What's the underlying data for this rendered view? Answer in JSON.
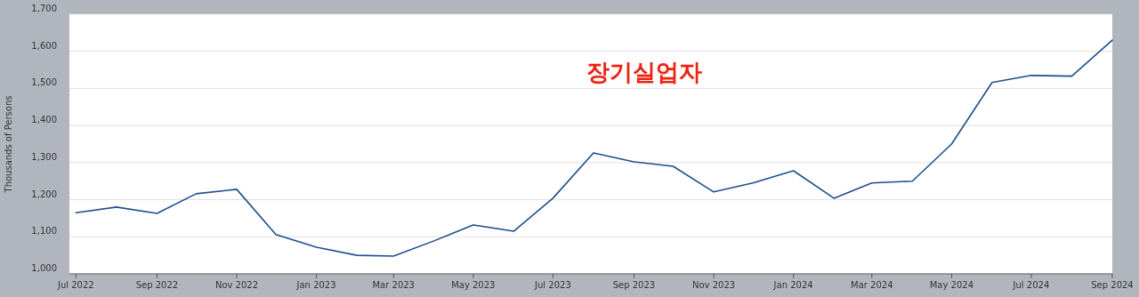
{
  "chart_data": {
    "type": "line",
    "ylabel": "Thousands of Persons",
    "annotations": [
      "장기실업자"
    ],
    "x": [
      "2022-07",
      "2022-08",
      "2022-09",
      "2022-10",
      "2022-11",
      "2022-12",
      "2023-01",
      "2023-02",
      "2023-03",
      "2023-04",
      "2023-05",
      "2023-06",
      "2023-07",
      "2023-08",
      "2023-09",
      "2023-10",
      "2023-11",
      "2023-12",
      "2024-01",
      "2024-02",
      "2024-03",
      "2024-04",
      "2024-05",
      "2024-06",
      "2024-07",
      "2024-08",
      "2024-09"
    ],
    "series": [
      {
        "color": "#1f4e8c",
        "values": [
          1165,
          1180,
          1163,
          1216,
          1228,
          1106,
          1072,
          1050,
          1048,
          1089,
          1132,
          1115,
          1204,
          1326,
          1302,
          1290,
          1221,
          1245,
          1278,
          1204,
          1245,
          1250,
          1350,
          1516,
          1535,
          1533,
          1630
        ]
      }
    ],
    "xlim": [
      "2022-06-26",
      "2024-09-01"
    ],
    "xticks": [
      {
        "value": "2022-07",
        "label": "Jul 2022"
      },
      {
        "value": "2022-09",
        "label": "Sep 2022"
      },
      {
        "value": "2022-11",
        "label": "Nov 2022"
      },
      {
        "value": "2023-01",
        "label": "Jan 2023"
      },
      {
        "value": "2023-03",
        "label": "Mar 2023"
      },
      {
        "value": "2023-05",
        "label": "May 2023"
      },
      {
        "value": "2023-07",
        "label": "Jul 2023"
      },
      {
        "value": "2023-09",
        "label": "Sep 2023"
      },
      {
        "value": "2023-11",
        "label": "Nov 2023"
      },
      {
        "value": "2024-01",
        "label": "Jan 2024"
      },
      {
        "value": "2024-03",
        "label": "Mar 2024"
      },
      {
        "value": "2024-05",
        "label": "May 2024"
      },
      {
        "value": "2024-07",
        "label": "Jul 2024"
      },
      {
        "value": "2024-09",
        "label": "Sep 2024"
      }
    ],
    "ylim": [
      1000,
      1700
    ],
    "yticks": [
      {
        "value": 1000,
        "label": "1,000"
      },
      {
        "value": 1100,
        "label": "1,100"
      },
      {
        "value": 1200,
        "label": "1,200"
      },
      {
        "value": 1300,
        "label": "1,300"
      },
      {
        "value": 1400,
        "label": "1,400"
      },
      {
        "value": 1500,
        "label": "1,500"
      },
      {
        "value": 1600,
        "label": "1,600"
      },
      {
        "value": 1700,
        "label": "1,700"
      }
    ],
    "grid": "y",
    "marker": "none",
    "line_style": "solid"
  }
}
